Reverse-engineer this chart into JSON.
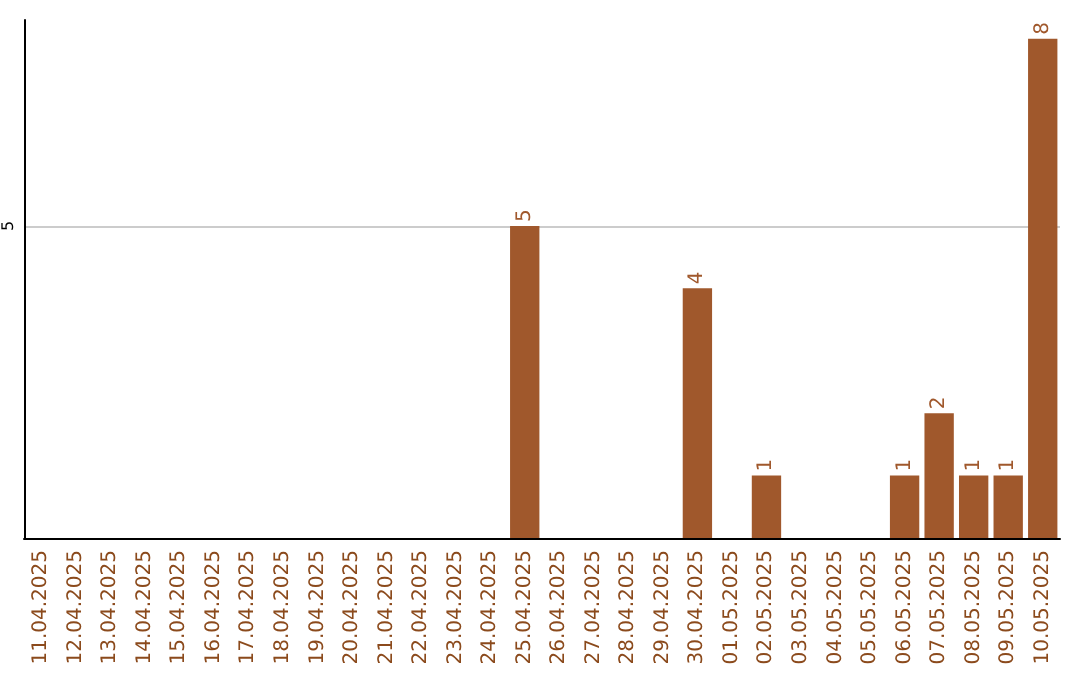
{
  "chart_data": {
    "type": "bar",
    "categories": [
      "11.04.2025",
      "12.04.2025",
      "13.04.2025",
      "14.04.2025",
      "15.04.2025",
      "16.04.2025",
      "17.04.2025",
      "18.04.2025",
      "19.04.2025",
      "20.04.2025",
      "21.04.2025",
      "22.04.2025",
      "23.04.2025",
      "24.04.2025",
      "25.04.2025",
      "26.04.2025",
      "27.04.2025",
      "28.04.2025",
      "29.04.2025",
      "30.04.2025",
      "01.05.2025",
      "02.05.2025",
      "03.05.2025",
      "04.05.2025",
      "05.05.2025",
      "06.05.2025",
      "07.05.2025",
      "08.05.2025",
      "09.05.2025",
      "10.05.2025"
    ],
    "values": [
      null,
      null,
      null,
      null,
      null,
      null,
      null,
      null,
      null,
      null,
      null,
      null,
      null,
      null,
      5,
      null,
      null,
      null,
      null,
      4,
      null,
      1,
      null,
      null,
      null,
      1,
      2,
      1,
      1,
      8
    ],
    "data_labels": true,
    "color": "#a0582c",
    "ylim": [
      0,
      8.3
    ],
    "yticks": [
      {
        "value": 0,
        "label": null
      },
      5
    ],
    "grid": "y"
  }
}
